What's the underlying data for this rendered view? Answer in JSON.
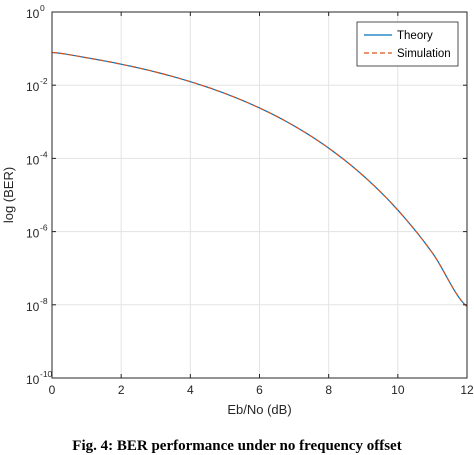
{
  "caption": "Fig. 4: BER performance under no frequency offset",
  "chart_data": {
    "type": "line",
    "xlabel": "Eb/No (dB)",
    "ylabel": "log (BER)",
    "xlim": [
      0,
      12
    ],
    "ylim": [
      1e-10,
      1
    ],
    "yscale": "log",
    "grid": true,
    "legend_position": "top-right",
    "x_ticks": [
      "0",
      "2",
      "4",
      "6",
      "8",
      "10",
      "12"
    ],
    "y_ticks": [
      {
        "base": "10",
        "exp": "0"
      },
      {
        "base": "10",
        "exp": "-2"
      },
      {
        "base": "10",
        "exp": "-4"
      },
      {
        "base": "10",
        "exp": "-6"
      },
      {
        "base": "10",
        "exp": "-8"
      },
      {
        "base": "10",
        "exp": "-10"
      }
    ],
    "x": [
      0,
      1,
      2,
      3,
      4,
      5,
      6,
      7,
      8,
      9,
      10,
      11,
      12
    ],
    "series": [
      {
        "name": "Theory",
        "style": "solid",
        "color": "#0072BD",
        "values": [
          0.0786,
          0.0563,
          0.0375,
          0.0229,
          0.0125,
          0.00595,
          0.00239,
          0.000774,
          0.000191,
          3.36e-05,
          3.87e-06,
          2.61e-07,
          9e-09
        ]
      },
      {
        "name": "Simulation",
        "style": "dashed",
        "color": "#D95319",
        "values": [
          0.0786,
          0.0563,
          0.0375,
          0.0229,
          0.0125,
          0.00595,
          0.00239,
          0.000774,
          0.000191,
          3.36e-05,
          3.87e-06,
          2.61e-07,
          9e-09
        ]
      }
    ]
  }
}
